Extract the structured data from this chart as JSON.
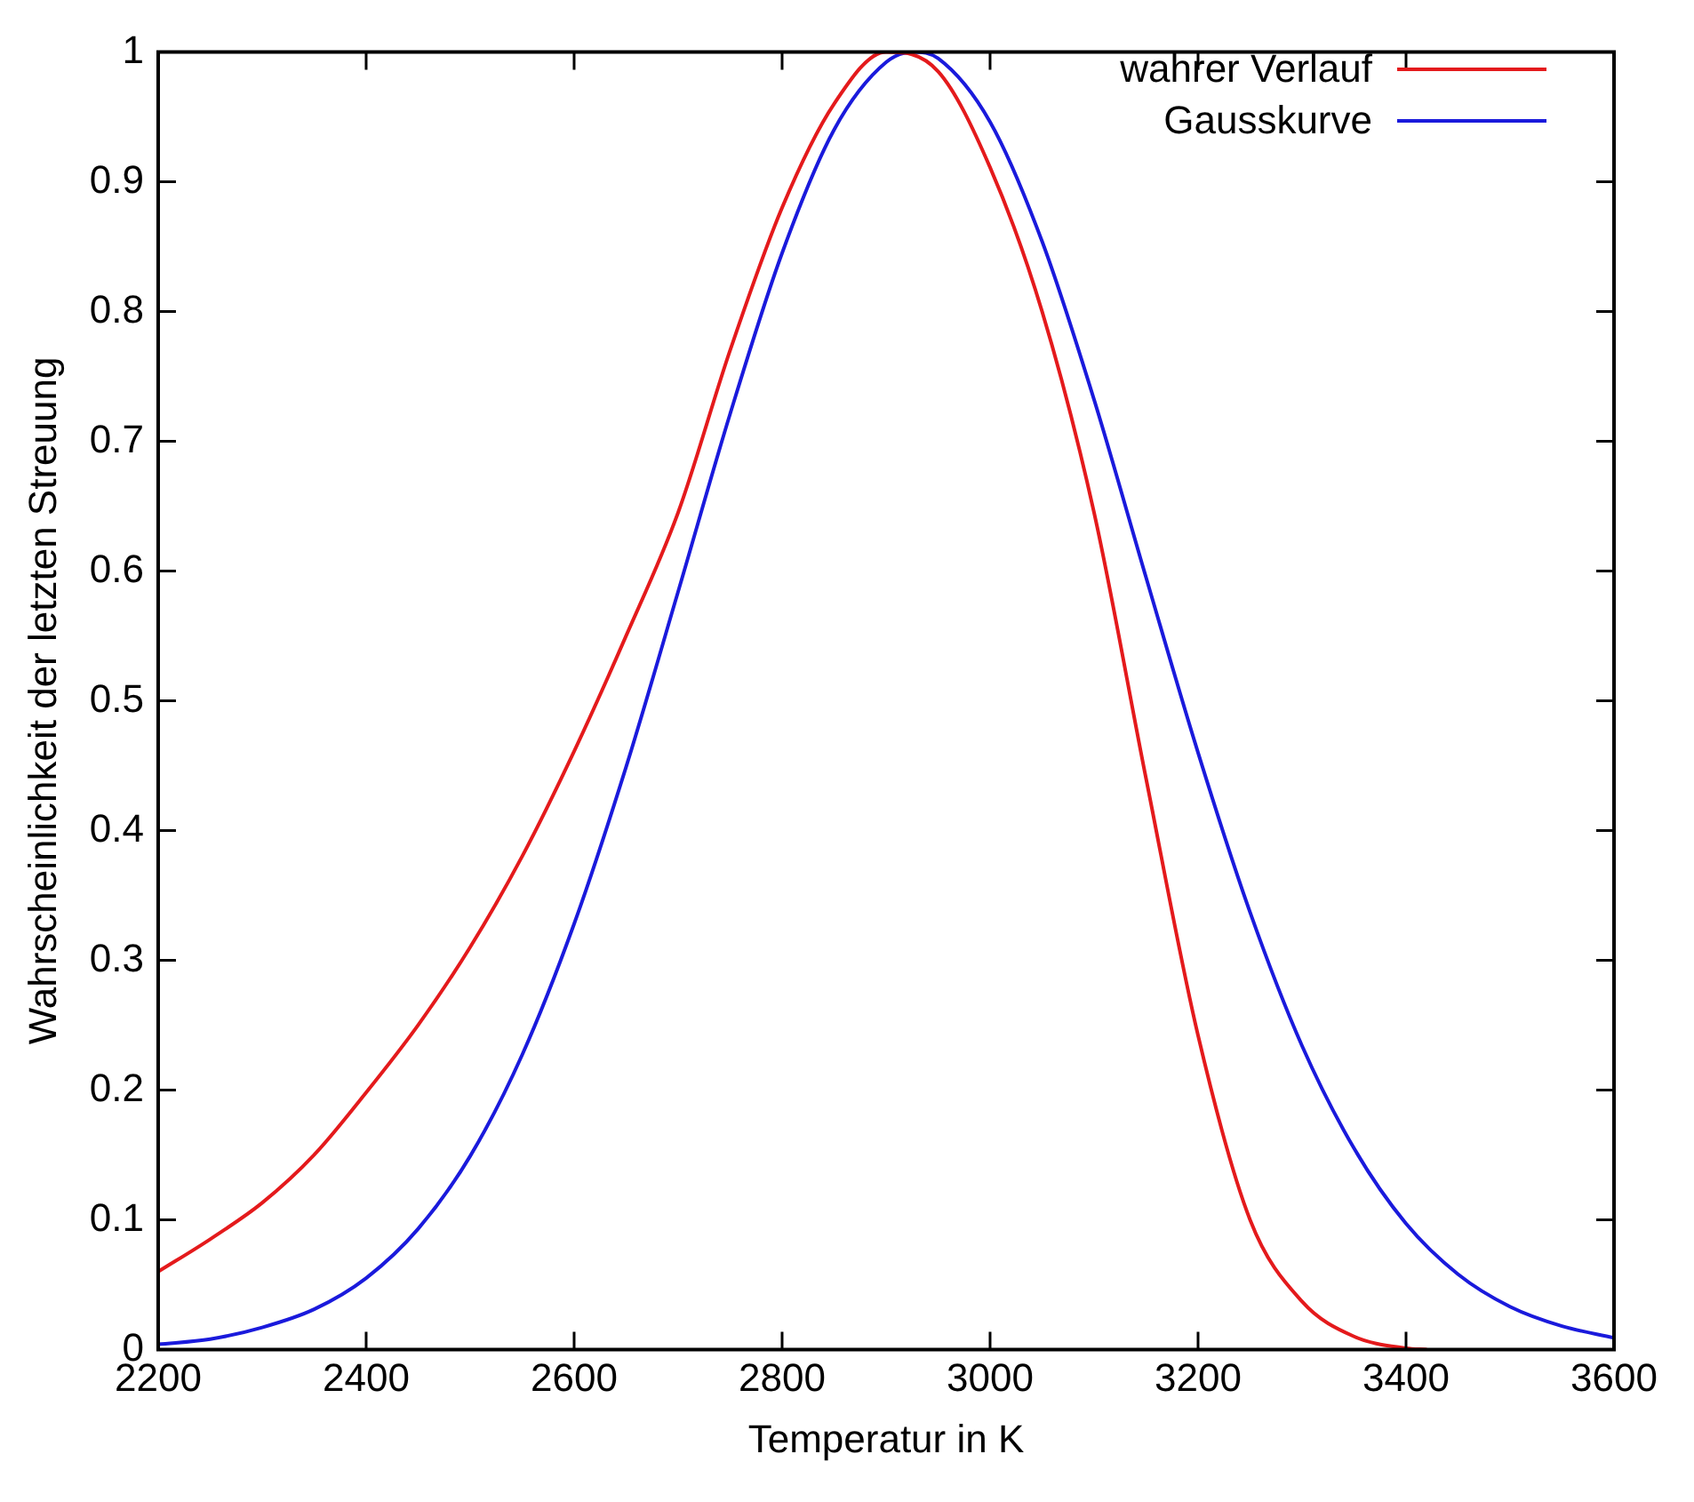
{
  "chart_data": {
    "type": "line",
    "xlabel": "Temperatur in K",
    "ylabel": "Wahrscheinlichkeit der letzten Streuung",
    "xlim": [
      2200,
      3600
    ],
    "xticks": [
      2200,
      2400,
      2600,
      2800,
      3000,
      3200,
      3400,
      3600
    ],
    "ylim": [
      0,
      1
    ],
    "yticks": [
      0,
      0.1,
      0.2,
      0.3,
      0.4,
      0.5,
      0.6,
      0.7,
      0.8,
      0.9,
      1
    ],
    "grid": false,
    "legend": "top right",
    "marker": "none",
    "line_style": "solid",
    "series": [
      {
        "name": "wahrer Verlauf",
        "color": "#e41a1c",
        "x": [
          2200,
          2250,
          2300,
          2350,
          2400,
          2450,
          2500,
          2550,
          2600,
          2650,
          2700,
          2750,
          2800,
          2850,
          2900,
          2950,
          3000,
          3050,
          3100,
          3150,
          3200,
          3250,
          3300,
          3350,
          3400,
          3420
        ],
        "values": [
          0.06,
          0.085,
          0.113,
          0.15,
          0.198,
          0.25,
          0.31,
          0.38,
          0.461,
          0.55,
          0.645,
          0.77,
          0.88,
          0.96,
          1.0,
          0.985,
          0.911,
          0.8,
          0.645,
          0.44,
          0.242,
          0.1,
          0.037,
          0.01,
          0.001,
          0
        ]
      },
      {
        "name": "Gausskurve",
        "color": "#1a1adc",
        "x": [
          2200,
          2250,
          2300,
          2350,
          2400,
          2450,
          2500,
          2550,
          2600,
          2650,
          2700,
          2750,
          2800,
          2850,
          2900,
          2927,
          2950,
          3000,
          3050,
          3100,
          3150,
          3200,
          3250,
          3300,
          3350,
          3400,
          3450,
          3500,
          3550,
          3600
        ],
        "values": [
          0.004,
          0.008,
          0.017,
          0.031,
          0.055,
          0.093,
          0.149,
          0.227,
          0.328,
          0.449,
          0.584,
          0.721,
          0.845,
          0.94,
          0.992,
          1,
          0.995,
          0.946,
          0.854,
          0.732,
          0.595,
          0.46,
          0.337,
          0.234,
          0.155,
          0.097,
          0.058,
          0.033,
          0.018,
          0.009
        ]
      }
    ]
  }
}
